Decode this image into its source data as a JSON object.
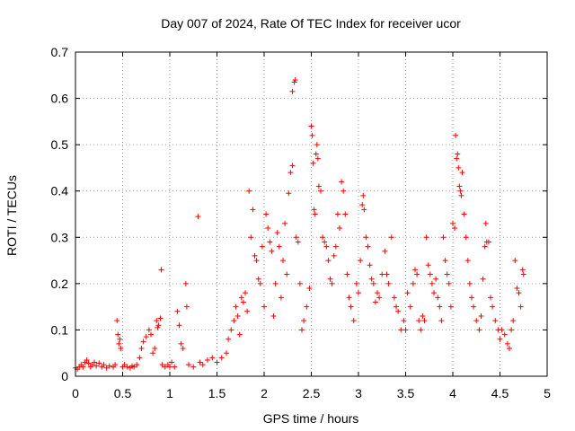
{
  "chart_data": {
    "type": "scatter",
    "title": "Day 007 of 2024, Rate Of TEC Index for receiver ucor",
    "xlabel": "GPS time / hours",
    "ylabel": "ROTI / TECUs",
    "xlim": [
      0,
      5
    ],
    "ylim": [
      0,
      0.7
    ],
    "x_ticks": [
      0,
      0.5,
      1,
      1.5,
      2,
      2.5,
      3,
      3.5,
      4,
      4.5,
      5
    ],
    "y_ticks": [
      0,
      0.1,
      0.2,
      0.3,
      0.4,
      0.5,
      0.6,
      0.7
    ],
    "x_tick_labels": [
      "0",
      "0.5",
      "1",
      "1.5",
      "2",
      "2.5",
      "3",
      "3.5",
      "4",
      "4.5",
      "5"
    ],
    "y_tick_labels": [
      "0",
      "0.1",
      "0.2",
      "0.3",
      "0.4",
      "0.5",
      "0.6",
      "0.7"
    ],
    "grid": true,
    "marker": "+",
    "color": "#ff0000",
    "series": [
      {
        "name": "ROTI",
        "points": [
          [
            0.0,
            0.018
          ],
          [
            0.02,
            0.015
          ],
          [
            0.04,
            0.02
          ],
          [
            0.06,
            0.025
          ],
          [
            0.08,
            0.02
          ],
          [
            0.1,
            0.03
          ],
          [
            0.12,
            0.035
          ],
          [
            0.14,
            0.028
          ],
          [
            0.16,
            0.02
          ],
          [
            0.18,
            0.025
          ],
          [
            0.2,
            0.03
          ],
          [
            0.22,
            0.022
          ],
          [
            0.25,
            0.028
          ],
          [
            0.28,
            0.02
          ],
          [
            0.3,
            0.025
          ],
          [
            0.33,
            0.018
          ],
          [
            0.36,
            0.022
          ],
          [
            0.4,
            0.02
          ],
          [
            0.42,
            0.025
          ],
          [
            0.44,
            0.12
          ],
          [
            0.45,
            0.09
          ],
          [
            0.46,
            0.07
          ],
          [
            0.47,
            0.08
          ],
          [
            0.48,
            0.06
          ],
          [
            0.5,
            0.02
          ],
          [
            0.52,
            0.025
          ],
          [
            0.55,
            0.02
          ],
          [
            0.58,
            0.018
          ],
          [
            0.6,
            0.022
          ],
          [
            0.62,
            0.02
          ],
          [
            0.65,
            0.025
          ],
          [
            0.68,
            0.04
          ],
          [
            0.7,
            0.06
          ],
          [
            0.72,
            0.075
          ],
          [
            0.75,
            0.085
          ],
          [
            0.78,
            0.1
          ],
          [
            0.8,
            0.09
          ],
          [
            0.82,
            0.05
          ],
          [
            0.84,
            0.06
          ],
          [
            0.86,
            0.12
          ],
          [
            0.87,
            0.105
          ],
          [
            0.88,
            0.11
          ],
          [
            0.9,
            0.125
          ],
          [
            0.91,
            0.23
          ],
          [
            0.92,
            0.025
          ],
          [
            0.95,
            0.02
          ],
          [
            0.98,
            0.025
          ],
          [
            1.0,
            0.02
          ],
          [
            1.02,
            0.03
          ],
          [
            1.05,
            0.02
          ],
          [
            1.08,
            0.14
          ],
          [
            1.1,
            0.11
          ],
          [
            1.12,
            0.07
          ],
          [
            1.14,
            0.06
          ],
          [
            1.17,
            0.2
          ],
          [
            1.18,
            0.15
          ],
          [
            1.2,
            0.025
          ],
          [
            1.25,
            0.02
          ],
          [
            1.3,
            0.345
          ],
          [
            1.32,
            0.03
          ],
          [
            1.35,
            0.025
          ],
          [
            1.4,
            0.035
          ],
          [
            1.45,
            0.04
          ],
          [
            1.5,
            0.03
          ],
          [
            1.55,
            0.04
          ],
          [
            1.6,
            0.05
          ],
          [
            1.62,
            0.08
          ],
          [
            1.65,
            0.1
          ],
          [
            1.68,
            0.12
          ],
          [
            1.7,
            0.15
          ],
          [
            1.72,
            0.13
          ],
          [
            1.74,
            0.09
          ],
          [
            1.76,
            0.17
          ],
          [
            1.78,
            0.16
          ],
          [
            1.8,
            0.18
          ],
          [
            1.82,
            0.14
          ],
          [
            1.84,
            0.4
          ],
          [
            1.86,
            0.3
          ],
          [
            1.88,
            0.36
          ],
          [
            1.9,
            0.26
          ],
          [
            1.92,
            0.25
          ],
          [
            1.94,
            0.21
          ],
          [
            1.96,
            0.2
          ],
          [
            1.98,
            0.28
          ],
          [
            2.0,
            0.15
          ],
          [
            2.02,
            0.35
          ],
          [
            2.04,
            0.32
          ],
          [
            2.06,
            0.29
          ],
          [
            2.08,
            0.27
          ],
          [
            2.1,
            0.13
          ],
          [
            2.12,
            0.2
          ],
          [
            2.14,
            0.31
          ],
          [
            2.16,
            0.28
          ],
          [
            2.18,
            0.17
          ],
          [
            2.2,
            0.25
          ],
          [
            2.22,
            0.33
          ],
          [
            2.24,
            0.22
          ],
          [
            2.26,
            0.395
          ],
          [
            2.28,
            0.44
          ],
          [
            2.3,
            0.455
          ],
          [
            2.3,
            0.615
          ],
          [
            2.32,
            0.635
          ],
          [
            2.33,
            0.64
          ],
          [
            2.34,
            0.3
          ],
          [
            2.36,
            0.29
          ],
          [
            2.38,
            0.2
          ],
          [
            2.4,
            0.1
          ],
          [
            2.42,
            0.12
          ],
          [
            2.45,
            0.15
          ],
          [
            2.48,
            0.19
          ],
          [
            2.5,
            0.54
          ],
          [
            2.51,
            0.52
          ],
          [
            2.52,
            0.46
          ],
          [
            2.53,
            0.36
          ],
          [
            2.54,
            0.35
          ],
          [
            2.55,
            0.48
          ],
          [
            2.56,
            0.5
          ],
          [
            2.57,
            0.47
          ],
          [
            2.58,
            0.41
          ],
          [
            2.6,
            0.4
          ],
          [
            2.62,
            0.3
          ],
          [
            2.64,
            0.29
          ],
          [
            2.66,
            0.28
          ],
          [
            2.68,
            0.25
          ],
          [
            2.7,
            0.21
          ],
          [
            2.72,
            0.2
          ],
          [
            2.74,
            0.26
          ],
          [
            2.76,
            0.28
          ],
          [
            2.78,
            0.35
          ],
          [
            2.8,
            0.32
          ],
          [
            2.82,
            0.42
          ],
          [
            2.84,
            0.4
          ],
          [
            2.86,
            0.35
          ],
          [
            2.88,
            0.22
          ],
          [
            2.9,
            0.17
          ],
          [
            2.92,
            0.15
          ],
          [
            2.95,
            0.12
          ],
          [
            2.98,
            0.2
          ],
          [
            3.0,
            0.18
          ],
          [
            3.02,
            0.25
          ],
          [
            3.04,
            0.37
          ],
          [
            3.05,
            0.39
          ],
          [
            3.06,
            0.36
          ],
          [
            3.08,
            0.3
          ],
          [
            3.1,
            0.28
          ],
          [
            3.12,
            0.24
          ],
          [
            3.14,
            0.21
          ],
          [
            3.16,
            0.2
          ],
          [
            3.18,
            0.16
          ],
          [
            3.2,
            0.18
          ],
          [
            3.22,
            0.17
          ],
          [
            3.25,
            0.22
          ],
          [
            3.28,
            0.27
          ],
          [
            3.3,
            0.22
          ],
          [
            3.32,
            0.2
          ],
          [
            3.35,
            0.3
          ],
          [
            3.38,
            0.17
          ],
          [
            3.4,
            0.15
          ],
          [
            3.42,
            0.14
          ],
          [
            3.45,
            0.1
          ],
          [
            3.48,
            0.12
          ],
          [
            3.5,
            0.1
          ],
          [
            3.52,
            0.18
          ],
          [
            3.55,
            0.15
          ],
          [
            3.58,
            0.2
          ],
          [
            3.6,
            0.23
          ],
          [
            3.62,
            0.22
          ],
          [
            3.64,
            0.12
          ],
          [
            3.66,
            0.1
          ],
          [
            3.68,
            0.13
          ],
          [
            3.7,
            0.12
          ],
          [
            3.72,
            0.3
          ],
          [
            3.74,
            0.24
          ],
          [
            3.76,
            0.22
          ],
          [
            3.78,
            0.2
          ],
          [
            3.8,
            0.18
          ],
          [
            3.82,
            0.21
          ],
          [
            3.84,
            0.17
          ],
          [
            3.86,
            0.15
          ],
          [
            3.88,
            0.12
          ],
          [
            3.9,
            0.3
          ],
          [
            3.92,
            0.25
          ],
          [
            3.94,
            0.22
          ],
          [
            3.96,
            0.2
          ],
          [
            3.98,
            0.15
          ],
          [
            4.0,
            0.33
          ],
          [
            4.02,
            0.32
          ],
          [
            4.03,
            0.52
          ],
          [
            4.04,
            0.47
          ],
          [
            4.05,
            0.48
          ],
          [
            4.06,
            0.45
          ],
          [
            4.07,
            0.41
          ],
          [
            4.08,
            0.4
          ],
          [
            4.09,
            0.39
          ],
          [
            4.1,
            0.44
          ],
          [
            4.12,
            0.35
          ],
          [
            4.14,
            0.3
          ],
          [
            4.16,
            0.25
          ],
          [
            4.18,
            0.2
          ],
          [
            4.2,
            0.17
          ],
          [
            4.22,
            0.15
          ],
          [
            4.25,
            0.12
          ],
          [
            4.28,
            0.1
          ],
          [
            4.3,
            0.13
          ],
          [
            4.32,
            0.21
          ],
          [
            4.34,
            0.28
          ],
          [
            4.35,
            0.33
          ],
          [
            4.36,
            0.29
          ],
          [
            4.38,
            0.29
          ],
          [
            4.4,
            0.17
          ],
          [
            4.42,
            0.15
          ],
          [
            4.45,
            0.12
          ],
          [
            4.48,
            0.1
          ],
          [
            4.5,
            0.08
          ],
          [
            4.52,
            0.1
          ],
          [
            4.55,
            0.09
          ],
          [
            4.58,
            0.07
          ],
          [
            4.6,
            0.06
          ],
          [
            4.62,
            0.1
          ],
          [
            4.64,
            0.12
          ],
          [
            4.66,
            0.25
          ],
          [
            4.68,
            0.19
          ],
          [
            4.7,
            0.18
          ],
          [
            4.72,
            0.15
          ],
          [
            4.74,
            0.23
          ],
          [
            4.75,
            0.22
          ]
        ]
      }
    ]
  }
}
